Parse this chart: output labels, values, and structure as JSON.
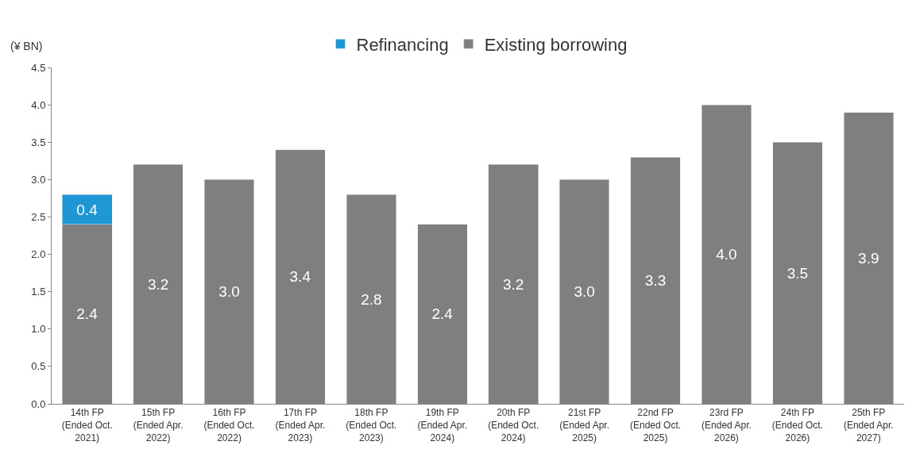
{
  "chart_data": {
    "type": "bar",
    "stacked": true,
    "ylabel": "(¥ BN)",
    "categories": [
      "14th FP\n(Ended Oct.\n2021)",
      "15th FP\n(Ended Apr.\n2022)",
      "16th FP\n(Ended Oct.\n2022)",
      "17th FP\n(Ended Apr.\n2023)",
      "18th FP\n(Ended Oct.\n2023)",
      "19th FP\n(Ended Apr.\n2024)",
      "20th FP\n(Ended Oct.\n2024)",
      "21st FP\n(Ended Apr.\n2025)",
      "22nd FP\n(Ended Oct.\n2025)",
      "23rd FP\n(Ended Apr.\n2026)",
      "24th FP\n(Ended Oct.\n2026)",
      "25th FP\n(Ended Apr.\n2027)"
    ],
    "series": [
      {
        "name": "Existing borrowing",
        "color": "#7f7f7f",
        "values": [
          2.4,
          3.2,
          3.0,
          3.4,
          2.8,
          2.4,
          3.2,
          3.0,
          3.3,
          4.0,
          3.5,
          3.9
        ],
        "value_labels": [
          "2.4",
          "3.2",
          "3.0",
          "3.4",
          "2.8",
          "2.4",
          "3.2",
          "3.0",
          "3.3",
          "4.0",
          "3.5",
          "3.9"
        ]
      },
      {
        "name": "Refinancing",
        "color": "#1f97d4",
        "values": [
          0.4,
          null,
          null,
          null,
          null,
          null,
          null,
          null,
          null,
          null,
          null,
          null
        ],
        "value_labels": [
          "0.4",
          null,
          null,
          null,
          null,
          null,
          null,
          null,
          null,
          null,
          null,
          null
        ]
      }
    ],
    "ylim": [
      0,
      4.5
    ],
    "yticks": [
      {
        "value": 0,
        "label": "0.0"
      },
      {
        "value": 0.5,
        "label": "0.5"
      },
      {
        "value": 1,
        "label": "1.0"
      },
      {
        "value": 1.5,
        "label": "1.5"
      },
      {
        "value": 2,
        "label": "2.0"
      },
      {
        "value": 2.5,
        "label": "2.5"
      },
      {
        "value": 3,
        "label": "3.0"
      },
      {
        "value": 3.5,
        "label": "3.5"
      },
      {
        "value": 4,
        "label": "4.0"
      },
      {
        "value": 4.5,
        "label": "4.5"
      }
    ],
    "legend": "top"
  }
}
